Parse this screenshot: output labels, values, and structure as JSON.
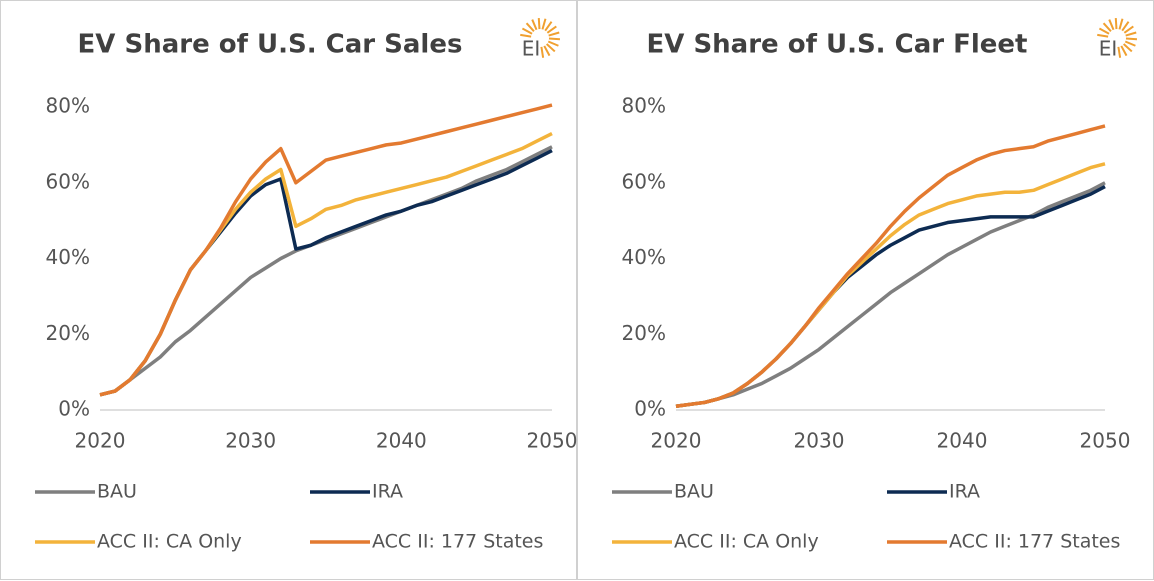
{
  "logo": "EI",
  "chart_data": [
    {
      "type": "line",
      "title": "EV Share of U.S. Car Sales",
      "x": [
        2020,
        2021,
        2022,
        2023,
        2024,
        2025,
        2026,
        2027,
        2028,
        2029,
        2030,
        2031,
        2032,
        2033,
        2034,
        2035,
        2036,
        2037,
        2038,
        2039,
        2040,
        2041,
        2042,
        2043,
        2044,
        2045,
        2046,
        2047,
        2048,
        2049,
        2050
      ],
      "xlim": [
        2020,
        2050
      ],
      "xticks": [
        2020,
        2030,
        2040,
        2050
      ],
      "ylim": [
        0,
        80
      ],
      "yticks": [
        {
          "value": 0,
          "label": "0%"
        },
        {
          "value": 20,
          "label": "20%"
        },
        {
          "value": 40,
          "label": "40%"
        },
        {
          "value": 60,
          "label": "60%"
        },
        {
          "value": 80,
          "label": "80%"
        }
      ],
      "grid": false,
      "legend": "bottom",
      "series": [
        {
          "name": "BAU",
          "color": "#7f7f7f",
          "values": [
            4,
            5,
            8,
            11,
            14,
            18,
            21,
            24.5,
            28,
            31.5,
            35,
            37.5,
            40,
            42,
            43.5,
            45,
            46.5,
            48,
            49.5,
            51,
            52.5,
            54,
            55.5,
            57,
            58.5,
            60.5,
            62,
            63.5,
            65.5,
            67.5,
            69.5
          ]
        },
        {
          "name": "IRA",
          "color": "#0d2b52",
          "values": [
            4,
            5,
            8,
            13,
            20,
            29,
            37,
            42,
            47,
            52,
            56.5,
            59.5,
            61,
            42.5,
            43.5,
            45.5,
            47,
            48.5,
            50,
            51.5,
            52.5,
            54,
            55,
            56.5,
            58,
            59.5,
            61,
            62.5,
            64.5,
            66.5,
            68.5
          ]
        },
        {
          "name": "ACC II: CA Only",
          "color": "#f3b33b",
          "values": [
            4,
            5,
            8,
            13,
            20,
            29,
            37,
            42,
            47.5,
            53,
            57.5,
            61,
            63.5,
            48.5,
            50.5,
            53,
            54,
            55.5,
            56.5,
            57.5,
            58.5,
            59.5,
            60.5,
            61.5,
            63,
            64.5,
            66,
            67.5,
            69,
            71,
            73
          ]
        },
        {
          "name": "ACC II: 177 States",
          "color": "#e37a30",
          "values": [
            4,
            5,
            8,
            13,
            20,
            29,
            37,
            42,
            48,
            55,
            61,
            65.5,
            69,
            60,
            63,
            66,
            67,
            68,
            69,
            70,
            70.5,
            71.5,
            72.5,
            73.5,
            74.5,
            75.5,
            76.5,
            77.5,
            78.5,
            79.5,
            80.5
          ]
        }
      ]
    },
    {
      "type": "line",
      "title": "EV Share of U.S. Car Fleet",
      "x": [
        2020,
        2021,
        2022,
        2023,
        2024,
        2025,
        2026,
        2027,
        2028,
        2029,
        2030,
        2031,
        2032,
        2033,
        2034,
        2035,
        2036,
        2037,
        2038,
        2039,
        2040,
        2041,
        2042,
        2043,
        2044,
        2045,
        2046,
        2047,
        2048,
        2049,
        2050
      ],
      "xlim": [
        2020,
        2050
      ],
      "xticks": [
        2020,
        2030,
        2040,
        2050
      ],
      "ylim": [
        0,
        80
      ],
      "yticks": [
        {
          "value": 0,
          "label": "0%"
        },
        {
          "value": 20,
          "label": "20%"
        },
        {
          "value": 40,
          "label": "40%"
        },
        {
          "value": 60,
          "label": "60%"
        },
        {
          "value": 80,
          "label": "80%"
        }
      ],
      "grid": false,
      "legend": "bottom",
      "series": [
        {
          "name": "BAU",
          "color": "#7f7f7f",
          "values": [
            1,
            1.5,
            2,
            3,
            4,
            5.5,
            7,
            9,
            11,
            13.5,
            16,
            19,
            22,
            25,
            28,
            31,
            33.5,
            36,
            38.5,
            41,
            43,
            45,
            47,
            48.5,
            50,
            51.5,
            53.5,
            55,
            56.5,
            58,
            60
          ]
        },
        {
          "name": "IRA",
          "color": "#0d2b52",
          "values": [
            1,
            1.5,
            2,
            3,
            4.5,
            7,
            10,
            13.5,
            17.5,
            22,
            26.5,
            31,
            35,
            38,
            41,
            43.5,
            45.5,
            47.5,
            48.5,
            49.5,
            50,
            50.5,
            51,
            51,
            51,
            51,
            52.5,
            54,
            55.5,
            57,
            59
          ]
        },
        {
          "name": "ACC II: CA Only",
          "color": "#f3b33b",
          "values": [
            1,
            1.5,
            2,
            3,
            4.5,
            7,
            10,
            13.5,
            17.5,
            22,
            26.5,
            31,
            35.5,
            39,
            42.5,
            46,
            49,
            51.5,
            53,
            54.5,
            55.5,
            56.5,
            57,
            57.5,
            57.5,
            58,
            59.5,
            61,
            62.5,
            64,
            65
          ]
        },
        {
          "name": "ACC II: 177 States",
          "color": "#e37a30",
          "values": [
            1,
            1.5,
            2,
            3,
            4.5,
            7,
            10,
            13.5,
            17.5,
            22,
            27,
            31.5,
            36,
            40,
            44,
            48.5,
            52.5,
            56,
            59,
            62,
            64,
            66,
            67.5,
            68.5,
            69,
            69.5,
            71,
            72,
            73,
            74,
            75
          ]
        }
      ]
    }
  ]
}
